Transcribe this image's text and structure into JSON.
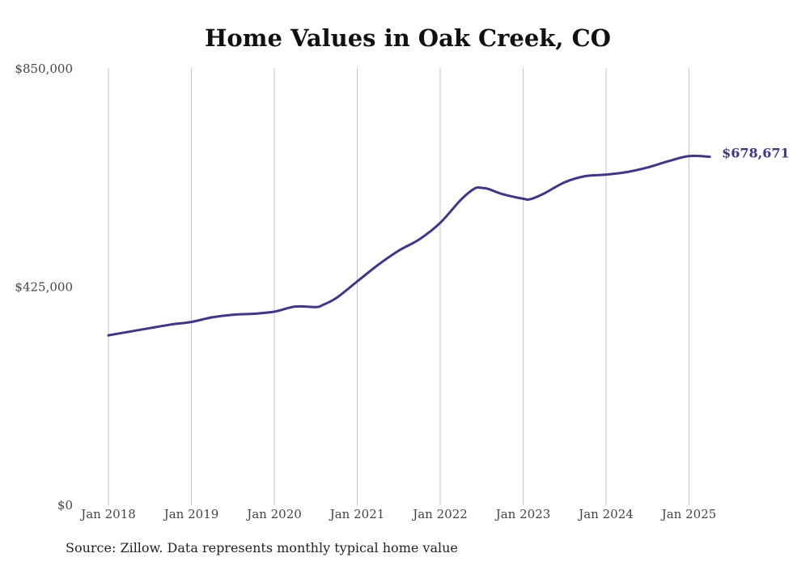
{
  "chart_data": {
    "type": "line",
    "title": "Home Values in Oak Creek, CO",
    "xlabel": "",
    "ylabel": "",
    "ylim": [
      0,
      850000
    ],
    "y_ticks": [
      "$0",
      "$425,000",
      "$850,000"
    ],
    "y_tick_values": [
      0,
      425000,
      850000
    ],
    "x_ticks": [
      "Jan 2018",
      "Jan 2019",
      "Jan 2020",
      "Jan 2021",
      "Jan 2022",
      "Jan 2023",
      "Jan 2024",
      "Jan 2025"
    ],
    "x_tick_values": [
      "2018-01",
      "2019-01",
      "2020-01",
      "2021-01",
      "2022-01",
      "2023-01",
      "2024-01",
      "2025-01"
    ],
    "grid": "vertical",
    "line_color": "#3f3590",
    "end_label": "$678,671",
    "source": "Source: Zillow. Data represents monthly typical home value",
    "series": [
      {
        "values": [
          {
            "x": "2018-01",
            "y": 331000
          },
          {
            "x": "2018-04",
            "y": 338000
          },
          {
            "x": "2018-07",
            "y": 345000
          },
          {
            "x": "2018-10",
            "y": 352000
          },
          {
            "x": "2019-01",
            "y": 357000
          },
          {
            "x": "2019-04",
            "y": 366000
          },
          {
            "x": "2019-07",
            "y": 371000
          },
          {
            "x": "2019-10",
            "y": 373000
          },
          {
            "x": "2020-01",
            "y": 377000
          },
          {
            "x": "2020-04",
            "y": 387000
          },
          {
            "x": "2020-07",
            "y": 386000
          },
          {
            "x": "2020-08",
            "y": 390000
          },
          {
            "x": "2020-10",
            "y": 404000
          },
          {
            "x": "2021-01",
            "y": 436000
          },
          {
            "x": "2021-04",
            "y": 468000
          },
          {
            "x": "2021-07",
            "y": 496000
          },
          {
            "x": "2021-10",
            "y": 518000
          },
          {
            "x": "2022-01",
            "y": 550000
          },
          {
            "x": "2022-04",
            "y": 595000
          },
          {
            "x": "2022-06",
            "y": 617000
          },
          {
            "x": "2022-07",
            "y": 618000
          },
          {
            "x": "2022-08",
            "y": 616000
          },
          {
            "x": "2022-10",
            "y": 606000
          },
          {
            "x": "2023-01",
            "y": 597000
          },
          {
            "x": "2023-02",
            "y": 596000
          },
          {
            "x": "2023-04",
            "y": 607000
          },
          {
            "x": "2023-07",
            "y": 629000
          },
          {
            "x": "2023-10",
            "y": 641000
          },
          {
            "x": "2024-01",
            "y": 644000
          },
          {
            "x": "2024-04",
            "y": 649000
          },
          {
            "x": "2024-07",
            "y": 658000
          },
          {
            "x": "2024-10",
            "y": 670000
          },
          {
            "x": "2025-01",
            "y": 680000
          },
          {
            "x": "2025-04",
            "y": 678671
          }
        ]
      }
    ]
  }
}
